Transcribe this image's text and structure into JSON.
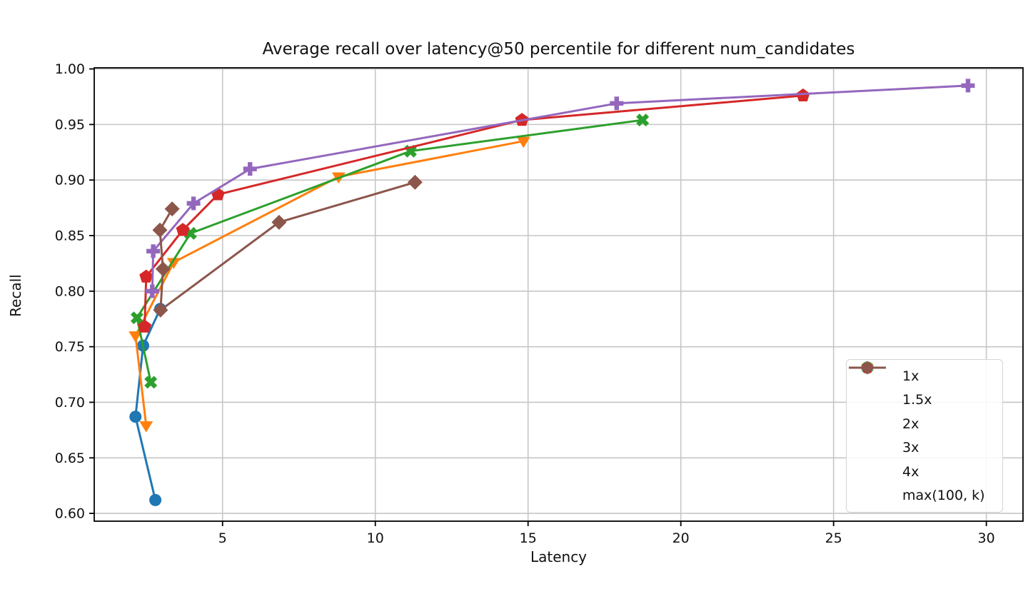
{
  "chart_data": {
    "type": "line",
    "title": "Average recall over latency@50 percentile for different num_candidates",
    "xlabel": "Latency",
    "ylabel": "Recall",
    "xlim": [
      0.8,
      31.2
    ],
    "ylim": [
      0.593,
      1.001
    ],
    "xticks": [
      5,
      10,
      15,
      20,
      25,
      30
    ],
    "yticks": [
      0.6,
      0.65,
      0.7,
      0.75,
      0.8,
      0.85,
      0.9,
      0.95,
      1.0
    ],
    "grid": true,
    "grid_color": "#c6c6c6",
    "legend_position": "lower right",
    "series": [
      {
        "name": "1x",
        "color": "#1f77b4",
        "marker": "circle",
        "points": [
          [
            2.8,
            0.612
          ],
          [
            2.15,
            0.687
          ],
          [
            2.4,
            0.751
          ],
          [
            2.96,
            0.784
          ]
        ]
      },
      {
        "name": "1.5x",
        "color": "#ff7f0e",
        "marker": "triangle-down",
        "points": [
          [
            2.5,
            0.679
          ],
          [
            2.15,
            0.76
          ],
          [
            3.4,
            0.826
          ],
          [
            8.8,
            0.903
          ],
          [
            14.85,
            0.935
          ]
        ]
      },
      {
        "name": "2x",
        "color": "#2ca02c",
        "marker": "x-thick",
        "points": [
          [
            2.65,
            0.718
          ],
          [
            2.2,
            0.776
          ],
          [
            3.95,
            0.852
          ],
          [
            11.15,
            0.926
          ],
          [
            18.75,
            0.954
          ]
        ]
      },
      {
        "name": "3x",
        "color": "#d62728",
        "marker": "pentagon",
        "points": [
          [
            2.45,
            0.768
          ],
          [
            2.5,
            0.813
          ],
          [
            3.7,
            0.855
          ],
          [
            4.85,
            0.887
          ],
          [
            14.8,
            0.954
          ],
          [
            24.0,
            0.976
          ]
        ]
      },
      {
        "name": "4x",
        "color": "#9467bd",
        "marker": "plus-thick",
        "points": [
          [
            2.7,
            0.8
          ],
          [
            2.73,
            0.836
          ],
          [
            4.05,
            0.879
          ],
          [
            5.9,
            0.91
          ],
          [
            17.9,
            0.969
          ],
          [
            29.4,
            0.985
          ]
        ]
      },
      {
        "name": "max(100, k)",
        "color": "#8c564b",
        "marker": "diamond",
        "points": [
          [
            3.35,
            0.874
          ],
          [
            2.95,
            0.855
          ],
          [
            3.05,
            0.82
          ],
          [
            2.97,
            0.783
          ],
          [
            6.85,
            0.862
          ],
          [
            11.3,
            0.898
          ]
        ]
      }
    ]
  }
}
